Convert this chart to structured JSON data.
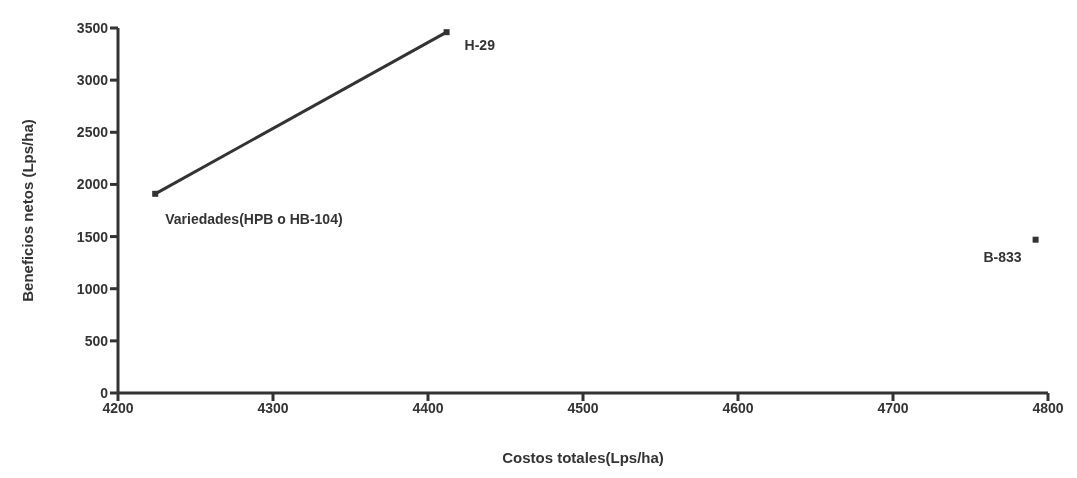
{
  "chart_data": {
    "type": "line",
    "xlabel": "Costos totales(Lps/ha)",
    "ylabel": "Beneficios netos (Lps/ha)",
    "series": [
      {
        "color": "#333333",
        "x": [
          4224,
          4412
        ],
        "values": [
          1910,
          3460
        ]
      },
      {
        "type": "scatter",
        "color": "#333333",
        "x": [
          4792
        ],
        "values": [
          1470
        ]
      }
    ],
    "xlim": [
      4200,
      4800
    ],
    "xticks": [
      4200,
      4300,
      4400,
      4500,
      4600,
      4700,
      4800
    ],
    "ylim": [
      0,
      3500
    ],
    "yticks": [
      0,
      500,
      1000,
      1500,
      2000,
      2500,
      3000,
      3500
    ],
    "marker": "square",
    "grid": false,
    "legend": false,
    "annotations": [
      {
        "text": "H-29",
        "x": 4412,
        "y": 3460
      },
      {
        "text": "Variedades(HPB o HB-104)",
        "x": 4224,
        "y": 1910
      },
      {
        "text": "B-833",
        "x": 4792,
        "y": 1470
      }
    ]
  }
}
